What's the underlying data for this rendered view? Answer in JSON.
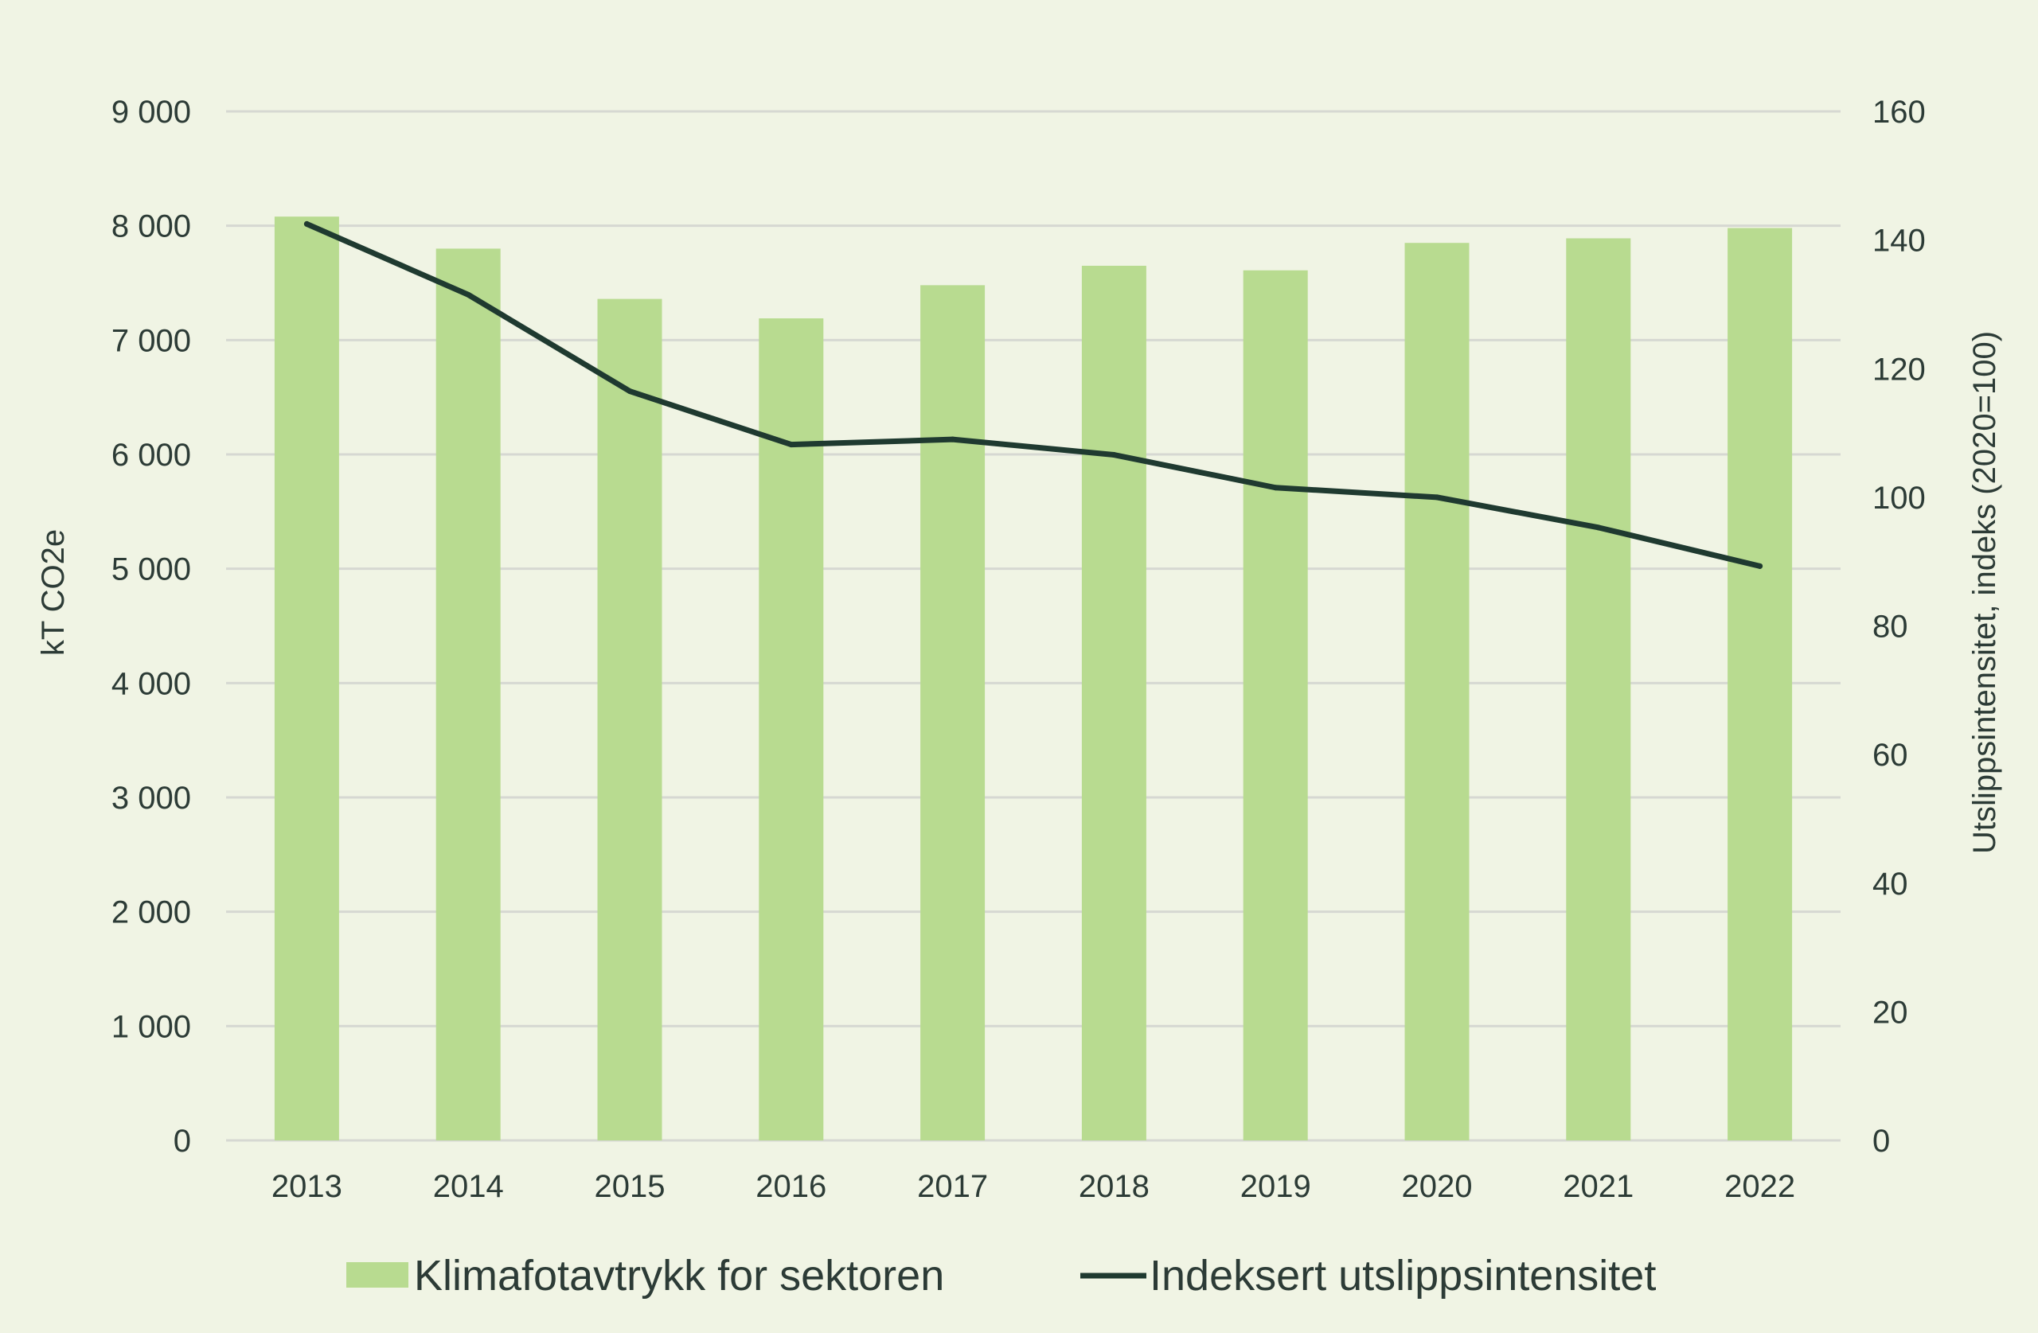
{
  "chart_data": {
    "type": "bar",
    "title": "",
    "categories": [
      "2013",
      "2014",
      "2015",
      "2016",
      "2017",
      "2018",
      "2019",
      "2020",
      "2021",
      "2022"
    ],
    "series": [
      {
        "name": "Klimafotavtrykk for sektoren",
        "type": "bar",
        "axis": "left",
        "color": "#b8db90",
        "values": [
          8080,
          7800,
          7360,
          7190,
          7480,
          7650,
          7610,
          7850,
          7890,
          7980
        ]
      },
      {
        "name": "Indeksert utslippsintensitet",
        "type": "line",
        "axis": "right",
        "color": "#1f3a30",
        "values": [
          142.5,
          131.5,
          116.5,
          108.2,
          109.0,
          106.6,
          101.5,
          100.0,
          95.3,
          89.3
        ]
      }
    ],
    "ylabel": "kT CO2e",
    "ylim": [
      0,
      9000
    ],
    "yticks": [
      "0",
      "1 000",
      "2 000",
      "3 000",
      "4 000",
      "5 000",
      "6 000",
      "7 000",
      "8 000",
      "9 000"
    ],
    "y2label": "Utslippsintensitet, indeks (2020=100)",
    "y2lim": [
      0,
      160
    ],
    "y2ticks": [
      "0",
      "20",
      "40",
      "60",
      "80",
      "100",
      "120",
      "140",
      "160"
    ],
    "grid": true,
    "legend_position": "bottom"
  }
}
